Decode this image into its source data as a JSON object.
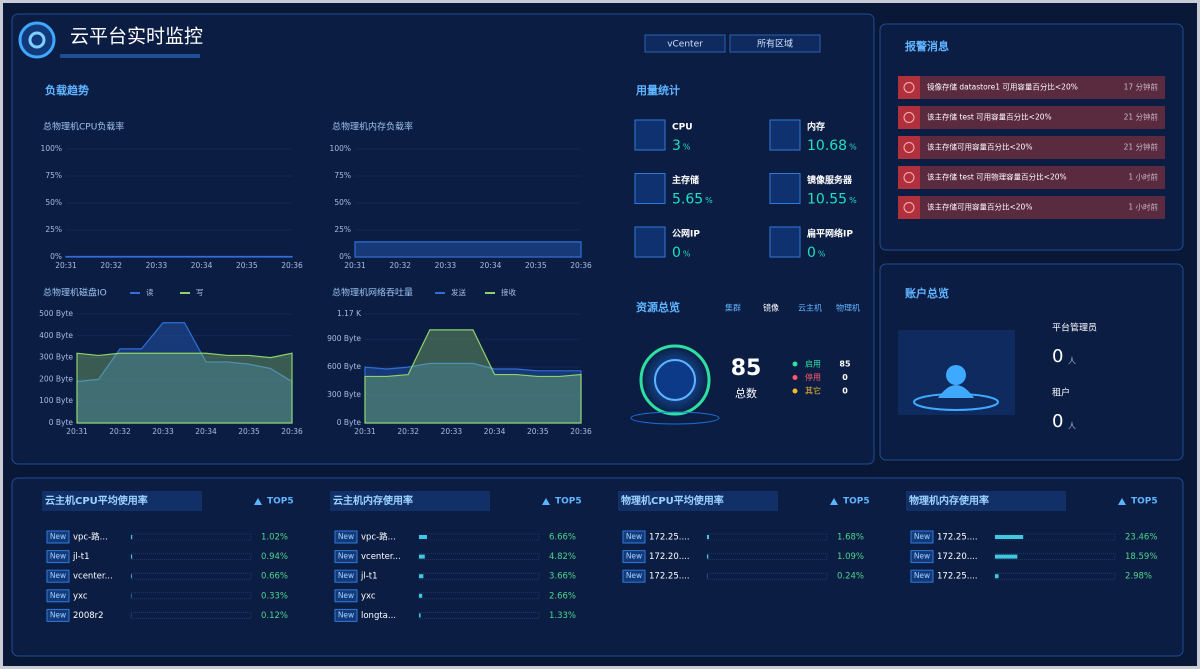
{
  "header": {
    "title": "云平台实时监控",
    "filters": [
      "vCenter",
      "所有区域"
    ]
  },
  "load_trend": {
    "title": "负载趋势",
    "charts": [
      {
        "type": "area",
        "title": "总物理机CPU负载率",
        "categories": [
          "20:31",
          "20:32",
          "20:33",
          "20:34",
          "20:35",
          "20:36"
        ],
        "values": [
          0.5,
          0.5,
          0.5,
          0.5,
          0.5,
          0.5
        ],
        "color": "#2f6fd6",
        "ylim": [
          0,
          100
        ],
        "yticks": [
          {
            "value": 0,
            "label": "0%"
          },
          {
            "value": 25,
            "label": "25%"
          },
          {
            "value": 50,
            "label": "50%"
          },
          {
            "value": 75,
            "label": "75%"
          },
          {
            "value": 100,
            "label": "100%"
          }
        ]
      },
      {
        "type": "area",
        "title": "总物理机内存负载率",
        "categories": [
          "20:31",
          "20:32",
          "20:33",
          "20:34",
          "20:35",
          "20:36"
        ],
        "values": [
          14,
          14,
          14,
          14,
          14,
          14
        ],
        "color": "#2f6fd6",
        "ylim": [
          0,
          100
        ],
        "yticks": [
          {
            "value": 0,
            "label": "0%"
          },
          {
            "value": 25,
            "label": "25%"
          },
          {
            "value": 50,
            "label": "50%"
          },
          {
            "value": 75,
            "label": "75%"
          },
          {
            "value": 100,
            "label": "100%"
          }
        ]
      },
      {
        "type": "area",
        "title": "总物理机磁盘IO",
        "categories": [
          "20:31",
          null,
          "20:32",
          null,
          "20:33",
          null,
          "20:34",
          null,
          "20:35",
          null,
          "20:36"
        ],
        "series": [
          {
            "name": "读",
            "color": "#2f6fd6",
            "values": [
              190,
              200,
              340,
              340,
              460,
              460,
              280,
              280,
              270,
              250,
              190
            ]
          },
          {
            "name": "写",
            "color": "#8fd16b",
            "values": [
              320,
              310,
              320,
              320,
              320,
              320,
              320,
              310,
              310,
              300,
              320
            ]
          }
        ],
        "ylim": [
          0,
          500
        ],
        "yticks": [
          {
            "value": 0,
            "label": "0 Byte"
          },
          {
            "value": 100,
            "label": "100 Byte"
          },
          {
            "value": 200,
            "label": "200 Byte"
          },
          {
            "value": 300,
            "label": "300 Byte"
          },
          {
            "value": 400,
            "label": "400 Byte"
          },
          {
            "value": 500,
            "label": "500 Byte"
          }
        ]
      },
      {
        "type": "area",
        "title": "总物理机网络吞吐量",
        "categories": [
          "20:31",
          null,
          "20:32",
          null,
          "20:33",
          null,
          "20:34",
          null,
          "20:35",
          null,
          "20:36"
        ],
        "series": [
          {
            "name": "发送",
            "color": "#2f6fd6",
            "values": [
              600,
              580,
              600,
              640,
              640,
              640,
              580,
              580,
              560,
              560,
              560
            ]
          },
          {
            "name": "接收",
            "color": "#8fd16b",
            "values": [
              500,
              500,
              520,
              1000,
              1000,
              1000,
              520,
              520,
              500,
              500,
              520
            ]
          }
        ],
        "ylim": [
          0,
          1170
        ],
        "yticks": [
          {
            "value": 0,
            "label": "0 Byte"
          },
          {
            "value": 300,
            "label": "300 Byte"
          },
          {
            "value": 600,
            "label": "600 Byte"
          },
          {
            "value": 900,
            "label": "900 Byte"
          },
          {
            "value": 1170,
            "label": "1.17 K"
          }
        ]
      }
    ]
  },
  "usage": {
    "title": "用量统计",
    "items": [
      {
        "name": "CPU",
        "value": 3,
        "unit": "%"
      },
      {
        "name": "内存",
        "value": 10.68,
        "unit": "%"
      },
      {
        "name": "主存储",
        "value": 5.65,
        "unit": "%"
      },
      {
        "name": "镜像服务器",
        "value": 10.55,
        "unit": "%"
      },
      {
        "name": "公网IP",
        "value": 0,
        "unit": "%"
      },
      {
        "name": "扁平网络IP",
        "value": 0,
        "unit": "%"
      }
    ]
  },
  "resources": {
    "title": "资源总览",
    "tabs": [
      "集群",
      "镜像",
      "云主机",
      "物理机"
    ],
    "total": 85,
    "total_label": "总数",
    "legend": [
      {
        "name": "启用",
        "value": 85,
        "color": "#2ee0a0"
      },
      {
        "name": "停用",
        "value": 0,
        "color": "#ff5a6a"
      },
      {
        "name": "其它",
        "value": 0,
        "color": "#f5b82e"
      }
    ]
  },
  "alerts": {
    "title": "报警消息",
    "items": [
      {
        "text": "镜像存储 datastore1 可用容量百分比<20%",
        "time": "17 分钟前"
      },
      {
        "text": "该主存储 test 可用容量百分比<20%",
        "time": "21 分钟前"
      },
      {
        "text": "该主存储可用容量百分比<20%",
        "time": "21 分钟前"
      },
      {
        "text": "该主存储 test 可用物理容量百分比<20%",
        "time": "1 小时前"
      },
      {
        "text": "该主存储可用容量百分比<20%",
        "time": "1 小时前"
      }
    ]
  },
  "accounts": {
    "title": "账户总览",
    "items": [
      {
        "label": "平台管理员",
        "value": 0,
        "unit": "人"
      },
      {
        "label": "租户",
        "value": 0,
        "unit": "人"
      }
    ]
  },
  "rankings": [
    {
      "title": "云主机CPU平均使用率",
      "top_label": "TOP5",
      "badge": "New",
      "items": [
        {
          "name": "vpc-路...",
          "value": 1.02,
          "value_label": "1.02%"
        },
        {
          "name": "jl-t1",
          "value": 0.94,
          "value_label": "0.94%"
        },
        {
          "name": "vcenter...",
          "value": 0.66,
          "value_label": "0.66%"
        },
        {
          "name": "yxc",
          "value": 0.33,
          "value_label": "0.33%"
        },
        {
          "name": "2008r2",
          "value": 0.12,
          "value_label": "0.12%"
        }
      ]
    },
    {
      "title": "云主机内存使用率",
      "top_label": "TOP5",
      "badge": "New",
      "items": [
        {
          "name": "vpc-路...",
          "value": 6.66,
          "value_label": "6.66%"
        },
        {
          "name": "vcenter...",
          "value": 4.82,
          "value_label": "4.82%"
        },
        {
          "name": "jl-t1",
          "value": 3.66,
          "value_label": "3.66%"
        },
        {
          "name": "yxc",
          "value": 2.66,
          "value_label": "2.66%"
        },
        {
          "name": "longta...",
          "value": 1.33,
          "value_label": "1.33%"
        }
      ]
    },
    {
      "title": "物理机CPU平均使用率",
      "top_label": "TOP5",
      "badge": "New",
      "items": [
        {
          "name": "172.25....",
          "value": 1.68,
          "value_label": "1.68%"
        },
        {
          "name": "172.20....",
          "value": 1.09,
          "value_label": "1.09%"
        },
        {
          "name": "172.25....",
          "value": 0.24,
          "value_label": "0.24%"
        }
      ]
    },
    {
      "title": "物理机内存使用率",
      "top_label": "TOP5",
      "badge": "New",
      "items": [
        {
          "name": "172.25....",
          "value": 23.46,
          "value_label": "23.46%"
        },
        {
          "name": "172.20....",
          "value": 18.59,
          "value_label": "18.59%"
        },
        {
          "name": "172.25....",
          "value": 2.98,
          "value_label": "2.98%"
        }
      ]
    }
  ]
}
